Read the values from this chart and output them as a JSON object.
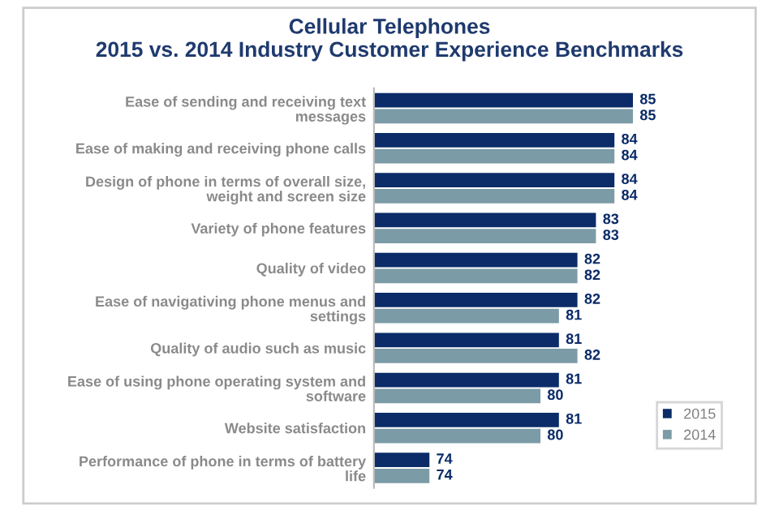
{
  "chart_data": {
    "type": "bar",
    "orientation": "horizontal",
    "title": "Cellular Telephones\n2015 vs. 2014 Industry Customer Experience Benchmarks",
    "categories": [
      "Ease of sending and receiving text\nmessages",
      "Ease of making and receiving phone calls",
      "Design of phone in terms of overall size,\nweight and screen size",
      "Variety of phone features",
      "Quality of video",
      "Ease of navigativing phone menus and\nsettings",
      "Quality of audio such as music",
      "Ease of using phone operating system and\nsoftware",
      "Website satisfaction",
      "Performance of phone in terms of battery\nlife"
    ],
    "series": [
      {
        "name": "2015",
        "color": "#0b2c68",
        "values": [
          85,
          84,
          84,
          83,
          82,
          82,
          81,
          81,
          81,
          74
        ]
      },
      {
        "name": "2014",
        "color": "#7b9ba6",
        "values": [
          85,
          84,
          84,
          83,
          82,
          81,
          82,
          80,
          80,
          74
        ]
      }
    ],
    "xlim": [
      71,
      87
    ],
    "tick_labels": "y",
    "data_labels": true,
    "legend": "bottom right",
    "grid": false
  }
}
